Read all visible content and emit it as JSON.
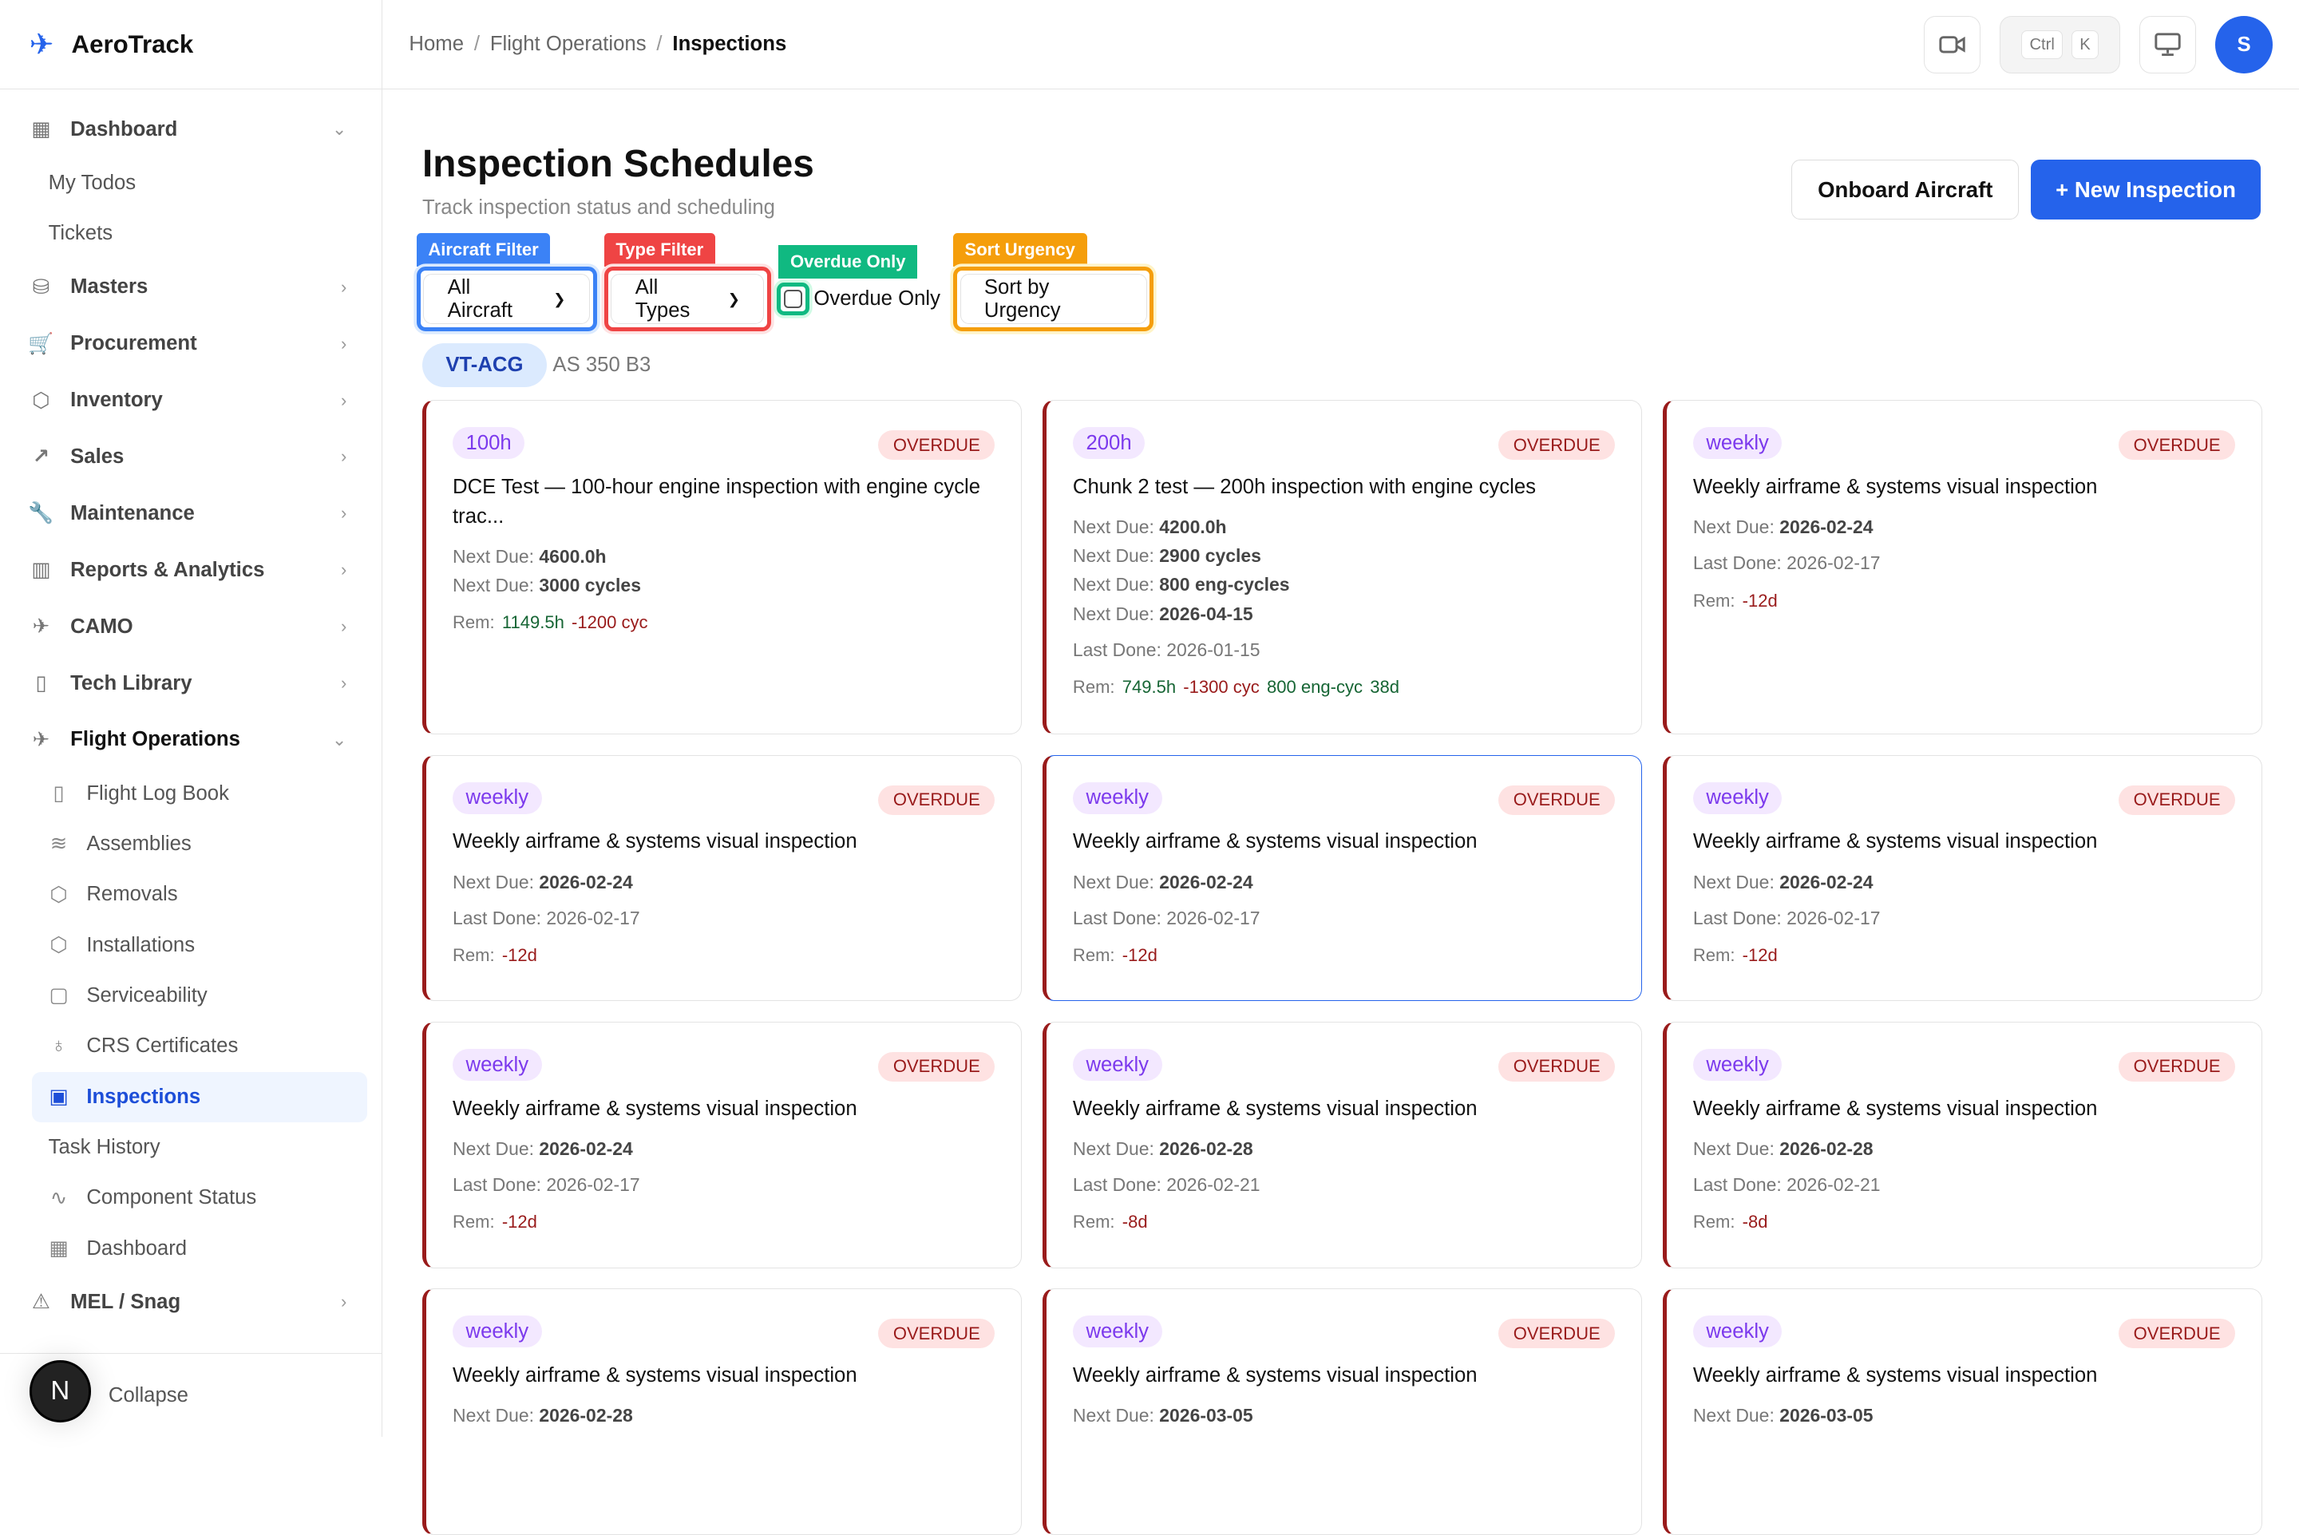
{
  "app": {
    "name": "AeroTrack"
  },
  "breadcrumb": [
    "Home",
    "Flight Operations",
    "Inspections"
  ],
  "topbar": {
    "shortcut_keys": [
      "Ctrl",
      "K"
    ],
    "avatar_initial": "S"
  },
  "sidebar": {
    "items": [
      {
        "label": "Dashboard",
        "icon": "grid-icon",
        "chev": "down"
      },
      {
        "label": "My Todos",
        "sub": true
      },
      {
        "label": "Tickets",
        "sub": true
      },
      {
        "label": "Masters",
        "icon": "database-icon",
        "chev": "right"
      },
      {
        "label": "Procurement",
        "icon": "cart-icon",
        "chev": "right"
      },
      {
        "label": "Inventory",
        "icon": "box-icon",
        "chev": "right"
      },
      {
        "label": "Sales",
        "icon": "trend-icon",
        "chev": "right"
      },
      {
        "label": "Maintenance",
        "icon": "wrench-icon",
        "chev": "right"
      },
      {
        "label": "Reports & Analytics",
        "icon": "bar-chart-icon",
        "chev": "right"
      },
      {
        "label": "CAMO",
        "icon": "plane-icon",
        "chev": "right"
      },
      {
        "label": "Tech Library",
        "icon": "book-icon",
        "chev": "right"
      },
      {
        "label": "Flight Operations",
        "icon": "takeoff-icon",
        "chev": "down",
        "open": true
      },
      {
        "label": "Flight Log Book",
        "sub2": true,
        "icon": "book-icon"
      },
      {
        "label": "Assemblies",
        "sub2": true,
        "icon": "layers-icon"
      },
      {
        "label": "Removals",
        "sub2": true,
        "icon": "package-icon"
      },
      {
        "label": "Installations",
        "sub2": true,
        "icon": "package-icon"
      },
      {
        "label": "Serviceability",
        "sub2": true,
        "icon": "file-check-icon"
      },
      {
        "label": "CRS Certificates",
        "sub2": true,
        "icon": "award-icon"
      },
      {
        "label": "Inspections",
        "sub2": true,
        "icon": "clipboard-icon",
        "active": true
      },
      {
        "label": "Task History",
        "sub": true
      },
      {
        "label": "Component Status",
        "sub2": true,
        "icon": "activity-icon"
      },
      {
        "label": "Dashboard",
        "sub2": true,
        "icon": "grid-icon"
      },
      {
        "label": "MEL / Snag",
        "icon": "warning-icon",
        "chev": "right"
      }
    ],
    "collapse_label": "Collapse",
    "dev_badge": "N"
  },
  "page": {
    "title": "Inspection Schedules",
    "subtitle": "Track inspection status and scheduling",
    "onboard_label": "Onboard Aircraft",
    "new_label": "+ New Inspection"
  },
  "filters": {
    "aircraft": {
      "tag": "Aircraft Filter",
      "value": "All Aircraft",
      "color": "#3b82f6"
    },
    "type": {
      "tag": "Type Filter",
      "value": "All Types",
      "color": "#ef4444"
    },
    "overdue": {
      "tag": "Overdue Only",
      "label": "Overdue Only",
      "checked": false,
      "color": "#10b981"
    },
    "sort": {
      "tag": "Sort Urgency",
      "label": "Sort by Urgency",
      "color": "#f59e0b"
    }
  },
  "aircraft": {
    "reg": "VT-ACG",
    "model": "AS 350 B3"
  },
  "cards": [
    {
      "type": "100h",
      "status": "OVERDUE",
      "title": "DCE Test — 100-hour engine inspection with engine cycle trac...",
      "due": [
        "4600.0h",
        "3000 cycles"
      ],
      "last": null,
      "rem": [
        {
          "v": "1149.5h",
          "c": "g"
        },
        {
          "v": "-1200 cyc",
          "c": "r"
        }
      ]
    },
    {
      "type": "200h",
      "status": "OVERDUE",
      "title": "Chunk 2 test — 200h inspection with engine cycles",
      "due": [
        "4200.0h",
        "2900 cycles",
        "800 eng-cycles",
        "2026-04-15"
      ],
      "last": "2026-01-15",
      "rem": [
        {
          "v": "749.5h",
          "c": "g"
        },
        {
          "v": "-1300 cyc",
          "c": "r"
        },
        {
          "v": "800 eng-cyc",
          "c": "g"
        },
        {
          "v": "38d",
          "c": "g"
        }
      ]
    },
    {
      "type": "weekly",
      "status": "OVERDUE",
      "title": "Weekly airframe & systems visual inspection",
      "due": [
        "2026-02-24"
      ],
      "last": "2026-02-17",
      "rem": [
        {
          "v": "-12d",
          "c": "r"
        }
      ]
    },
    {
      "type": "weekly",
      "status": "OVERDUE",
      "title": "Weekly airframe & systems visual inspection",
      "due": [
        "2026-02-24"
      ],
      "last": "2026-02-17",
      "rem": [
        {
          "v": "-12d",
          "c": "r"
        }
      ]
    },
    {
      "type": "weekly",
      "status": "OVERDUE",
      "title": "Weekly airframe & systems visual inspection",
      "due": [
        "2026-02-24"
      ],
      "last": "2026-02-17",
      "rem": [
        {
          "v": "-12d",
          "c": "r"
        }
      ],
      "selected": true
    },
    {
      "type": "weekly",
      "status": "OVERDUE",
      "title": "Weekly airframe & systems visual inspection",
      "due": [
        "2026-02-24"
      ],
      "last": "2026-02-17",
      "rem": [
        {
          "v": "-12d",
          "c": "r"
        }
      ]
    },
    {
      "type": "weekly",
      "status": "OVERDUE",
      "title": "Weekly airframe & systems visual inspection",
      "due": [
        "2026-02-24"
      ],
      "last": "2026-02-17",
      "rem": [
        {
          "v": "-12d",
          "c": "r"
        }
      ]
    },
    {
      "type": "weekly",
      "status": "OVERDUE",
      "title": "Weekly airframe & systems visual inspection",
      "due": [
        "2026-02-28"
      ],
      "last": "2026-02-21",
      "rem": [
        {
          "v": "-8d",
          "c": "r"
        }
      ]
    },
    {
      "type": "weekly",
      "status": "OVERDUE",
      "title": "Weekly airframe & systems visual inspection",
      "due": [
        "2026-02-28"
      ],
      "last": "2026-02-21",
      "rem": [
        {
          "v": "-8d",
          "c": "r"
        }
      ]
    },
    {
      "type": "weekly",
      "status": "OVERDUE",
      "title": "Weekly airframe & systems visual inspection",
      "due": [
        "2026-02-28"
      ]
    },
    {
      "type": "weekly",
      "status": "OVERDUE",
      "title": "Weekly airframe & systems visual inspection",
      "due": [
        "2026-03-05"
      ]
    },
    {
      "type": "weekly",
      "status": "OVERDUE",
      "title": "Weekly airframe & systems visual inspection",
      "due": [
        "2026-03-05"
      ]
    }
  ],
  "labels": {
    "next_due": "Next Due:",
    "last_done": "Last Done:",
    "rem": "Rem:"
  }
}
